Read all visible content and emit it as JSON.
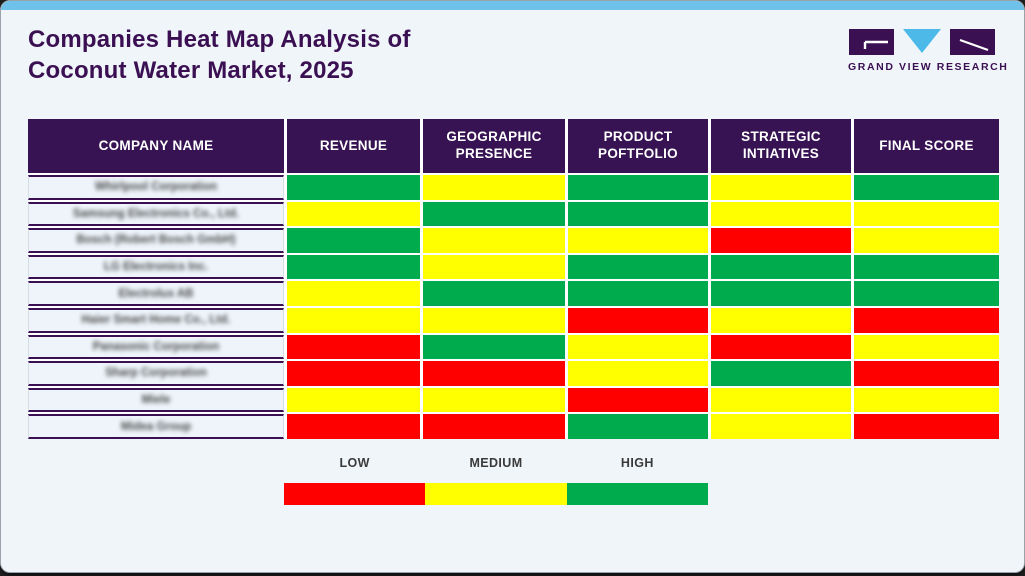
{
  "header": {
    "title": "Companies Heat Map Analysis of\nCoconut Water Market, 2025"
  },
  "logo": {
    "text": "GRAND VIEW RESEARCH"
  },
  "table": {
    "columns": [
      "COMPANY NAME",
      "REVENUE",
      "GEOGRAPHIC PRESENCE",
      "PRODUCT POFTFOLIO",
      "STRATEGIC INTIATIVES",
      "FINAL SCORE"
    ]
  },
  "legend": {
    "items": [
      {
        "label": "LOW",
        "level": "low"
      },
      {
        "label": "MEDIUM",
        "level": "medium"
      },
      {
        "label": "HIGH",
        "level": "high"
      }
    ]
  },
  "colors": {
    "low": "#fe0000",
    "medium": "#ffff00",
    "high": "#00ab4e",
    "header_bg": "#371353",
    "title_text": "#3b1053",
    "top_bar": "#6ec1e9",
    "card_bg": "#f0f5fa",
    "logo_purple": "#3b1053",
    "logo_blue": "#4cb9e9"
  },
  "chart_data": {
    "type": "heatmap",
    "title": "Companies Heat Map Analysis of Coconut Water Market, 2025",
    "row_header": "COMPANY NAME",
    "columns": [
      "REVENUE",
      "GEOGRAPHIC PRESENCE",
      "PRODUCT POFTFOLIO",
      "STRATEGIC INTIATIVES",
      "FINAL SCORE"
    ],
    "rows": [
      "Whirlpool Corporation",
      "Samsung Electronics Co., Ltd.",
      "Bosch (Robert Bosch GmbH)",
      "LG Electronics Inc.",
      "Electrolux AB",
      "Haier Smart Home Co., Ltd.",
      "Panasonic Corporation",
      "Sharp Corporation",
      "Miele",
      "Midea Group"
    ],
    "values": [
      [
        "high",
        "medium",
        "high",
        "medium",
        "high"
      ],
      [
        "medium",
        "high",
        "high",
        "medium",
        "medium"
      ],
      [
        "high",
        "medium",
        "medium",
        "low",
        "medium"
      ],
      [
        "high",
        "medium",
        "high",
        "high",
        "high"
      ],
      [
        "medium",
        "high",
        "high",
        "high",
        "high"
      ],
      [
        "medium",
        "medium",
        "low",
        "medium",
        "low"
      ],
      [
        "low",
        "high",
        "medium",
        "low",
        "medium"
      ],
      [
        "low",
        "low",
        "medium",
        "high",
        "low"
      ],
      [
        "medium",
        "medium",
        "low",
        "medium",
        "medium"
      ],
      [
        "low",
        "low",
        "high",
        "medium",
        "low"
      ]
    ],
    "scale": {
      "low": "LOW",
      "medium": "MEDIUM",
      "high": "HIGH"
    },
    "legend_position": "bottom"
  }
}
